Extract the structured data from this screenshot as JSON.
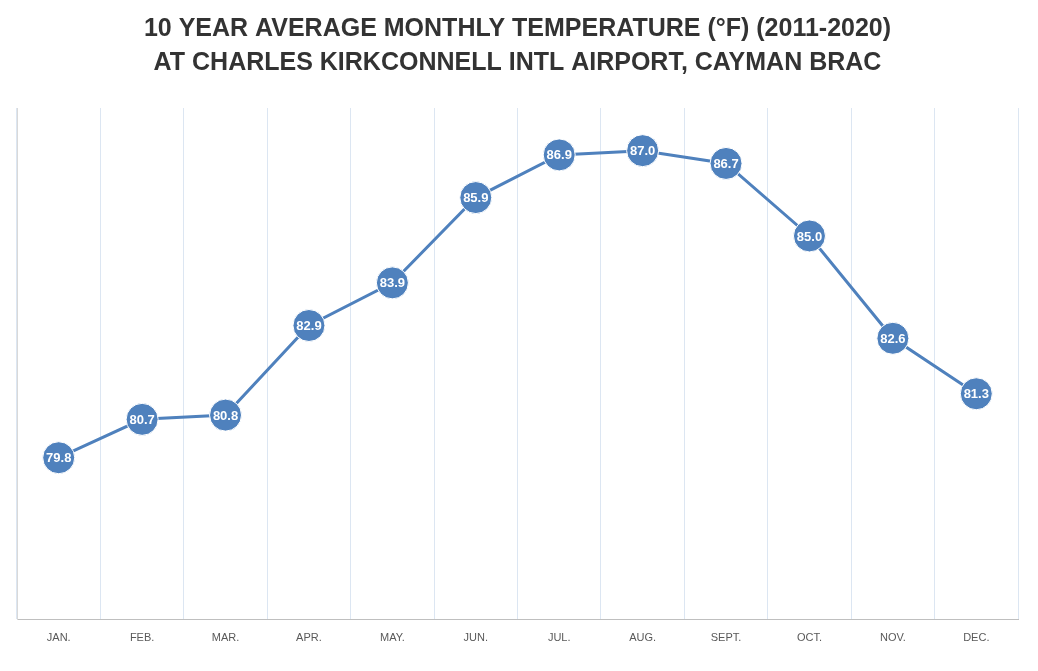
{
  "chart_data": {
    "type": "line",
    "title": "10 YEAR AVERAGE MONTHLY TEMPERATURE (°F) (2011-2020)",
    "subtitle": "AT CHARLES KIRKCONNELL INTL AIRPORT, CAYMAN BRAC",
    "categories": [
      "JAN.",
      "FEB.",
      "MAR.",
      "APR.",
      "MAY.",
      "JUN.",
      "JUL.",
      "AUG.",
      "SEPT.",
      "OCT.",
      "NOV.",
      "DEC."
    ],
    "values": [
      79.8,
      80.7,
      80.8,
      82.9,
      83.9,
      85.9,
      86.9,
      87.0,
      86.7,
      85.0,
      82.6,
      81.3
    ],
    "value_labels": [
      "79.8",
      "80.7",
      "80.8",
      "82.9",
      "83.9",
      "85.9",
      "86.9",
      "87.0",
      "86.7",
      "85.0",
      "82.6",
      "81.3"
    ],
    "color": "#4f81bd",
    "marker": "circle",
    "line_style": "solid",
    "ylim": [
      76,
      88
    ],
    "grid": "x",
    "data_labels": true,
    "tick_labels": "x"
  }
}
